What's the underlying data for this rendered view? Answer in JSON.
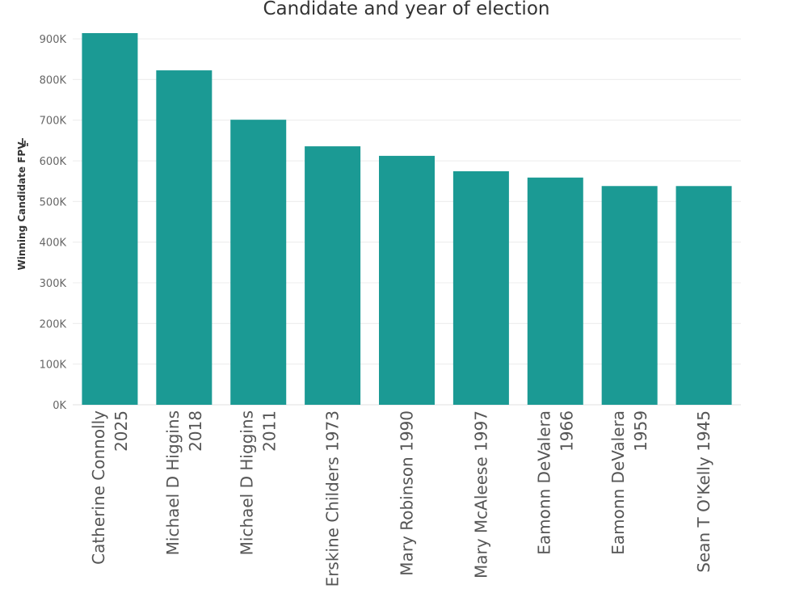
{
  "chart_data": {
    "type": "bar",
    "title": "Candidate and year of election",
    "xlabel": "",
    "ylabel": "Winning Candidate FPV",
    "categories": [
      [
        "Catherine Connolly",
        "2025"
      ],
      [
        "Michael D Higgins",
        "2018"
      ],
      [
        "Michael D Higgins",
        "2011"
      ],
      [
        "Erskine Childers 1973"
      ],
      [
        "Mary Robinson 1990"
      ],
      [
        "Mary McAleese 1997"
      ],
      [
        "Eamonn DeValera",
        "1966"
      ],
      [
        "Eamonn DeValera",
        "1959"
      ],
      [
        "Sean T O'Kelly  1945"
      ]
    ],
    "values": [
      914143,
      822566,
      701101,
      635727,
      612265,
      574424,
      558861,
      538003,
      537965
    ],
    "ylim": [
      0,
      930000
    ],
    "yticks": [
      0,
      100000,
      200000,
      300000,
      400000,
      500000,
      600000,
      700000,
      800000,
      900000
    ],
    "ytick_labels": [
      "0K",
      "100K",
      "200K",
      "300K",
      "400K",
      "500K",
      "600K",
      "700K",
      "800K",
      "900K"
    ],
    "grid": true,
    "sort_indicator": "descending",
    "bar_color": "#1b9a94"
  }
}
